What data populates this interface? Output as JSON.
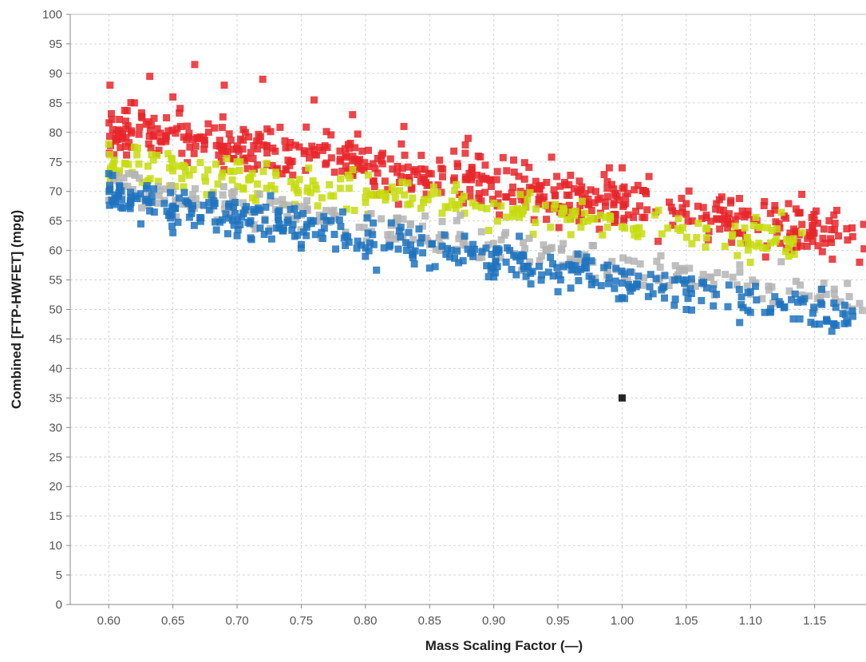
{
  "chart_data": {
    "type": "scatter",
    "title": "",
    "xlabel": "Mass Scaling Factor (—)",
    "ylabel": "Combined [FTP-HWFET] (mpg)",
    "xlim": [
      0.57,
      1.19
    ],
    "ylim": [
      0,
      100
    ],
    "x_ticks": [
      "0.60",
      "0.65",
      "0.70",
      "0.75",
      "0.80",
      "0.85",
      "0.90",
      "0.95",
      "1.00",
      "1.05",
      "1.10",
      "1.15"
    ],
    "y_ticks": [
      "0",
      "5",
      "10",
      "15",
      "20",
      "25",
      "30",
      "35",
      "40",
      "45",
      "50",
      "55",
      "60",
      "65",
      "70",
      "75",
      "80",
      "85",
      "90",
      "95",
      "100"
    ],
    "grid": true,
    "legend": "none",
    "series": [
      {
        "color": "#e8262a",
        "trend": {
          "x_start": 0.6,
          "x_end": 1.19,
          "y_start": 81,
          "y_end": 62,
          "spread": 4.2
        },
        "points": [
          [
            0.601,
            88
          ],
          [
            0.632,
            89.5
          ],
          [
            0.667,
            91.5
          ],
          [
            0.62,
            85
          ],
          [
            0.65,
            86
          ],
          [
            0.69,
            88
          ],
          [
            0.72,
            89
          ],
          [
            0.76,
            85.5
          ],
          [
            0.79,
            83
          ],
          [
            0.83,
            81
          ],
          [
            0.88,
            79
          ],
          [
            0.99,
            74
          ],
          [
            1.0,
            74
          ],
          [
            1.14,
            69.5
          ],
          [
            1.165,
            66
          ],
          [
            1.185,
            58
          ]
        ]
      },
      {
        "color": "#c5dc0e",
        "trend": {
          "x_start": 0.6,
          "x_end": 1.14,
          "y_start": 75,
          "y_end": 61,
          "spread": 3.2
        },
        "points": [
          [
            0.6,
            78
          ],
          [
            0.62,
            77.5
          ],
          [
            0.7,
            75
          ],
          [
            0.8,
            69
          ],
          [
            0.9,
            68
          ],
          [
            1.0,
            64
          ],
          [
            1.1,
            61
          ],
          [
            1.14,
            63
          ]
        ]
      },
      {
        "color": "#b4b4b4",
        "trend": {
          "x_start": 0.6,
          "x_end": 1.19,
          "y_start": 71,
          "y_end": 51,
          "spread": 3.0
        },
        "points": [
          [
            0.6,
            68.5
          ],
          [
            0.65,
            70
          ],
          [
            0.75,
            66
          ],
          [
            0.85,
            61
          ],
          [
            0.95,
            56
          ],
          [
            1.05,
            54
          ],
          [
            1.15,
            50
          ],
          [
            1.185,
            51
          ]
        ]
      },
      {
        "color": "#1f73be",
        "trend": {
          "x_start": 0.6,
          "x_end": 1.18,
          "y_start": 69,
          "y_end": 49,
          "spread": 3.0
        },
        "points": [
          [
            0.6,
            73
          ],
          [
            0.625,
            64.5
          ],
          [
            0.65,
            63
          ],
          [
            0.7,
            62.5
          ],
          [
            0.75,
            61
          ],
          [
            0.8,
            59
          ],
          [
            0.85,
            57
          ],
          [
            0.9,
            55.5
          ],
          [
            0.95,
            53
          ],
          [
            1.0,
            52
          ],
          [
            1.05,
            50
          ],
          [
            1.1,
            49.5
          ],
          [
            1.15,
            47.5
          ],
          [
            1.175,
            48
          ]
        ]
      },
      {
        "color": "#000000",
        "trend": null,
        "points": [
          [
            1.0,
            35
          ]
        ]
      }
    ]
  }
}
